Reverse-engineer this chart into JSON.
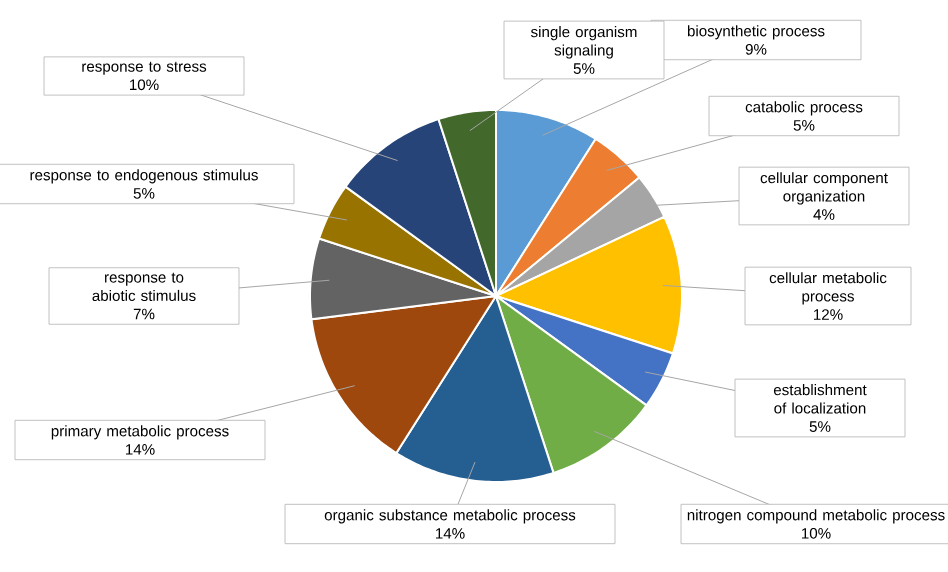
{
  "chart_data": {
    "type": "pie",
    "categories": [
      "biosynthetic process",
      "catabolic process",
      "cellular component organization",
      "cellular metabolic process",
      "establishment of localization",
      "nitrogen compound metabolic process",
      "organic substance metabolic process",
      "primary metabolic process",
      "response to abiotic stimulus",
      "response to endogenous stimulus",
      "response to stress",
      "single organism signaling"
    ],
    "values": [
      9,
      5,
      4,
      12,
      5,
      10,
      14,
      14,
      7,
      5,
      10,
      5
    ],
    "value_labels": [
      "9%",
      "5%",
      "4%",
      "12%",
      "5%",
      "10%",
      "14%",
      "14%",
      "7%",
      "5%",
      "10%",
      "5%"
    ],
    "colors": [
      "#5b9bd5",
      "#ed7d31",
      "#a5a5a5",
      "#ffc000",
      "#4472c4",
      "#70ad47",
      "#255e91",
      "#9e480e",
      "#636363",
      "#997300",
      "#264478",
      "#43682b"
    ]
  }
}
